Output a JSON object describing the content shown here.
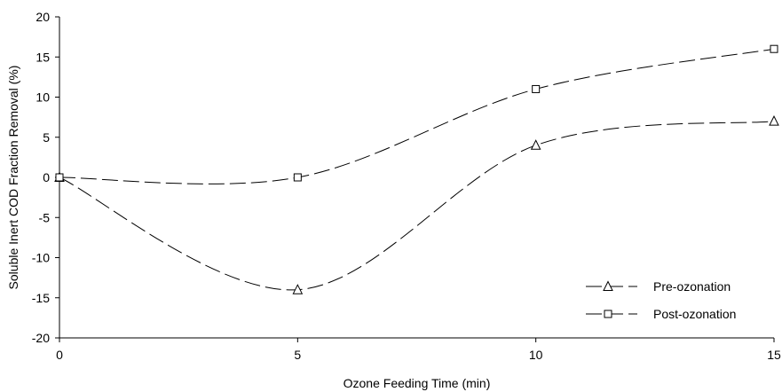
{
  "chart_data": {
    "type": "line",
    "title": "",
    "xlabel": "Ozone Feeding Time (min)",
    "ylabel": "Soluble Inert COD Fraction Removal (%)",
    "x": [
      0,
      5,
      10,
      15
    ],
    "xlim": [
      0,
      15
    ],
    "ylim": [
      -20,
      20
    ],
    "xticks": [
      0,
      5,
      10,
      15
    ],
    "yticks": [
      20,
      15,
      10,
      5,
      0,
      -5,
      -10,
      -15,
      -20
    ],
    "grid": false,
    "legend_position": "bottom-right",
    "series": [
      {
        "name": "Pre-ozonation",
        "marker": "triangle",
        "line_style": "dashed",
        "color": "#000000",
        "values": [
          0,
          -14,
          4,
          7
        ]
      },
      {
        "name": "Post-ozonation",
        "marker": "square",
        "line_style": "dashed",
        "color": "#000000",
        "values": [
          0,
          0,
          11,
          16
        ]
      }
    ]
  }
}
